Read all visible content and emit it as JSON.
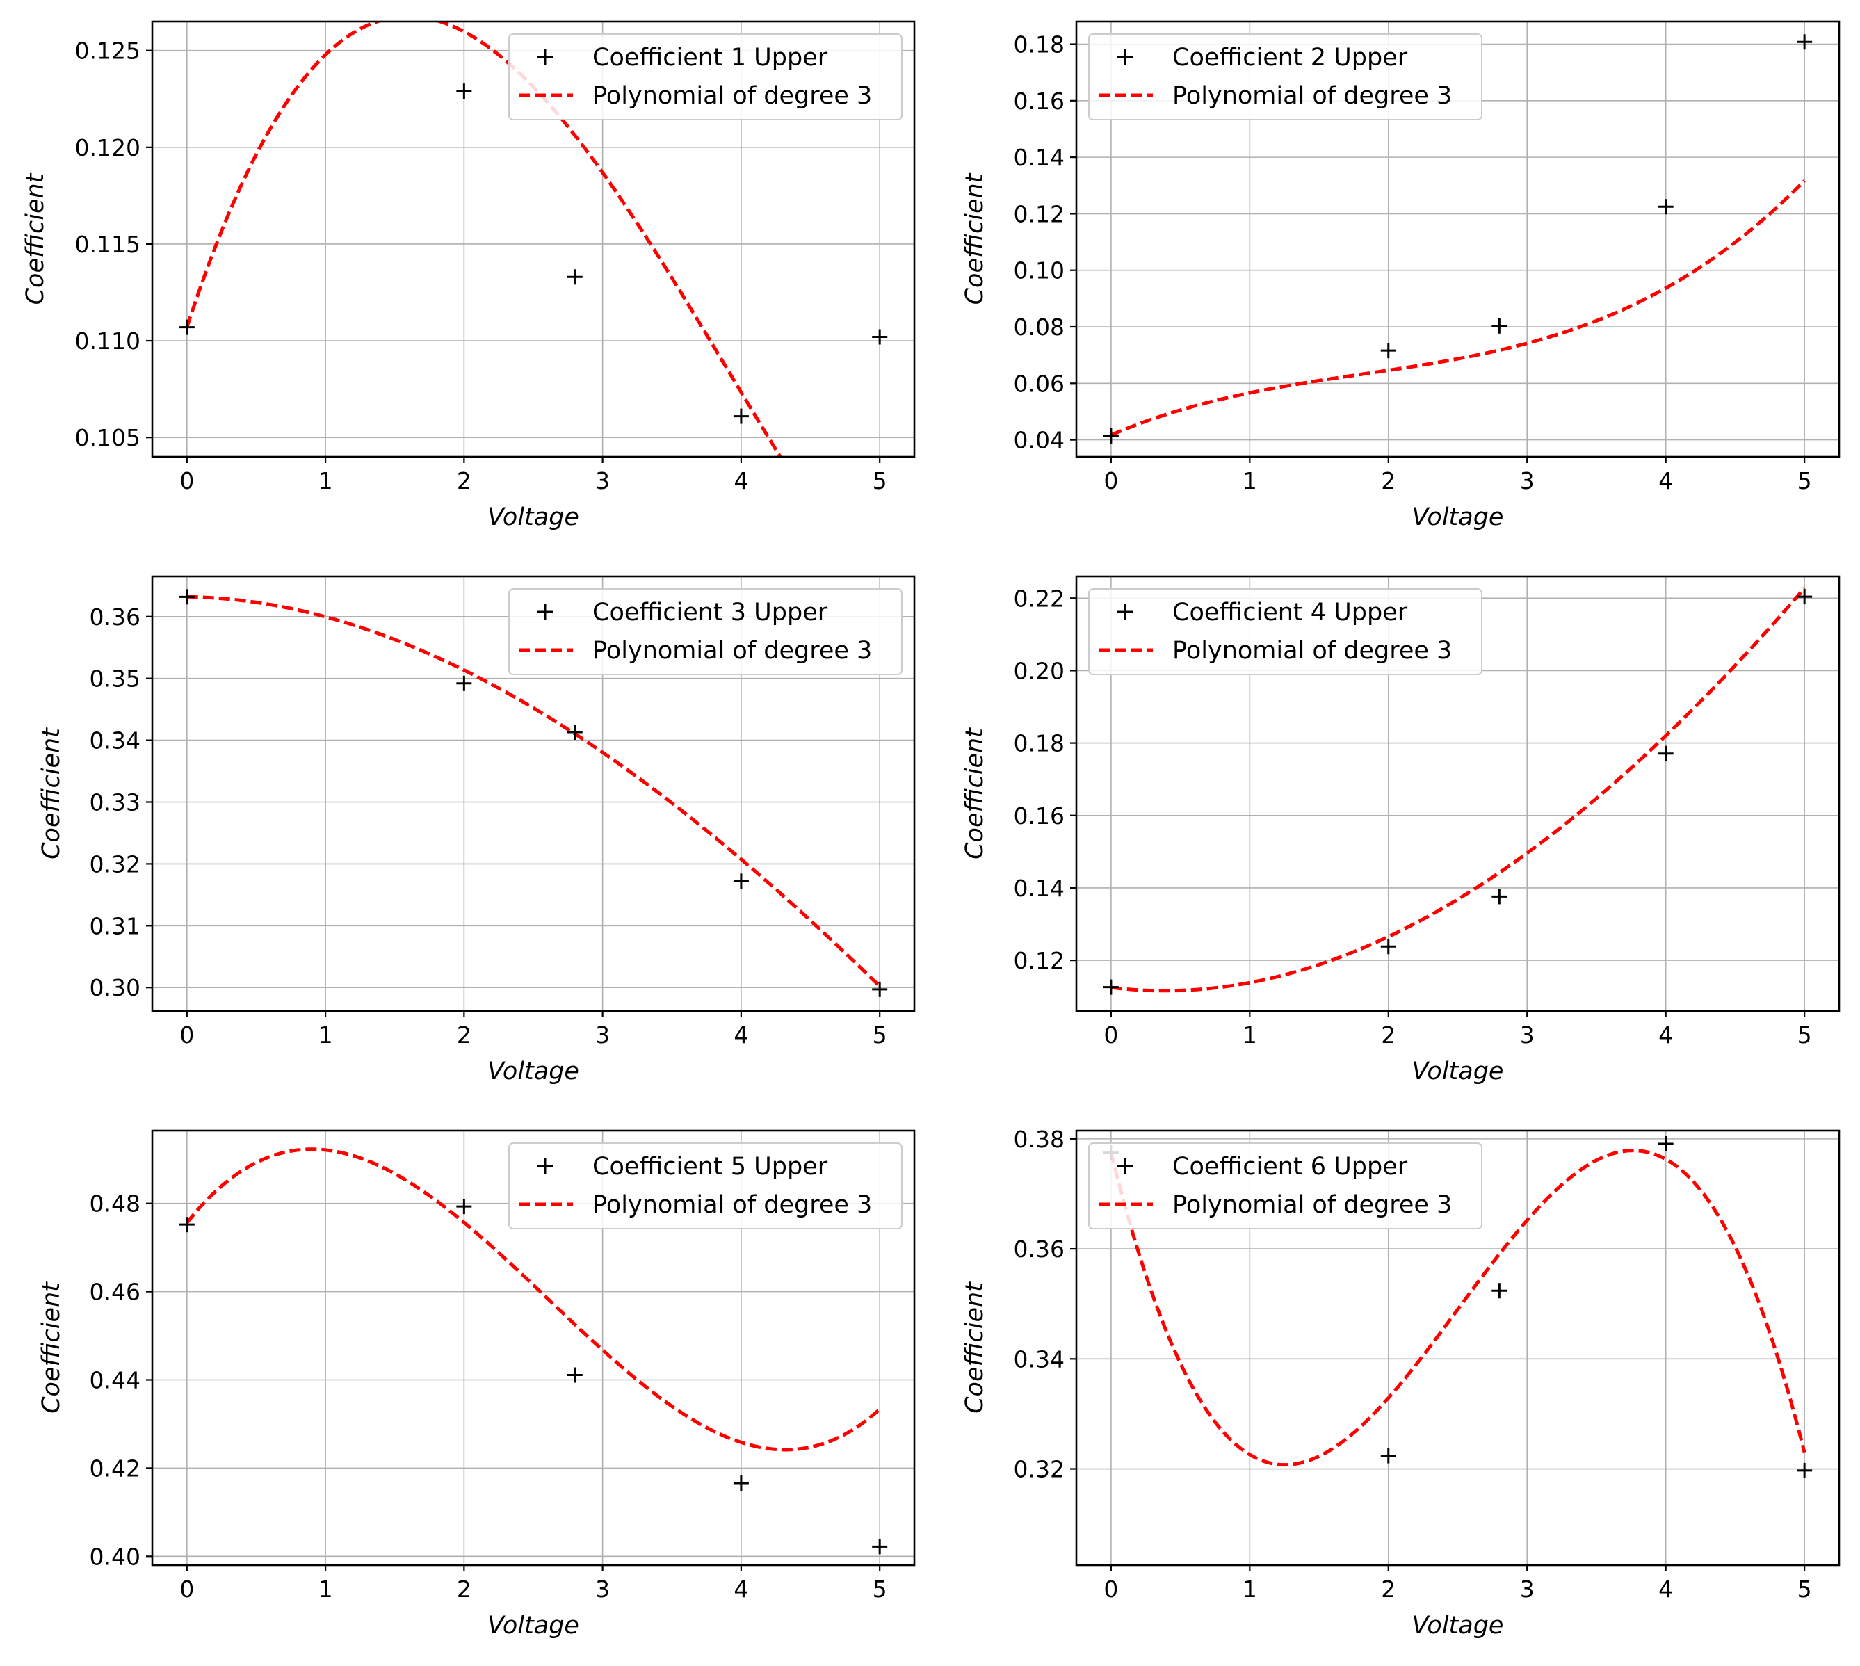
{
  "chart_data": [
    {
      "type": "line",
      "xlabel": "Voltage",
      "ylabel": "Coefficient",
      "xlim": [
        -0.25,
        5.25
      ],
      "ylim": [
        0.104,
        0.1265
      ],
      "xticks": [
        0,
        1,
        2,
        3,
        4,
        5
      ],
      "yticks": [
        0.105,
        0.11,
        0.115,
        0.12,
        0.125
      ],
      "ytick_labels": [
        "0.105",
        "0.110",
        "0.115",
        "0.120",
        "0.125"
      ],
      "grid": true,
      "legend_position": "top-right",
      "series": [
        {
          "name": "Coefficient 1 Upper",
          "kind": "points",
          "x": [
            0,
            2,
            2.8,
            4,
            5
          ],
          "y": [
            0.1107,
            0.1229,
            0.1133,
            0.1061,
            0.1102
          ]
        },
        {
          "name": "Polynomial of degree 3",
          "kind": "fit",
          "coeffs": [
            0.1107,
            0.022,
            -0.00865,
            0.000735
          ]
        }
      ]
    },
    {
      "type": "line",
      "xlabel": "Voltage",
      "ylabel": "Coefficient",
      "xlim": [
        -0.25,
        5.25
      ],
      "ylim": [
        0.034,
        0.188
      ],
      "xticks": [
        0,
        1,
        2,
        3,
        4,
        5
      ],
      "yticks": [
        0.04,
        0.06,
        0.08,
        0.1,
        0.12,
        0.14,
        0.16,
        0.18
      ],
      "ytick_labels": [
        "0.04",
        "0.06",
        "0.08",
        "0.10",
        "0.12",
        "0.14",
        "0.16",
        "0.18"
      ],
      "grid": true,
      "legend_position": "top-left",
      "series": [
        {
          "name": "Coefficient 2 Upper",
          "kind": "points",
          "x": [
            0,
            2,
            2.8,
            4,
            5
          ],
          "y": [
            0.0414,
            0.0716,
            0.0803,
            0.1225,
            0.1808
          ]
        },
        {
          "name": "Polynomial of degree 3",
          "kind": "fit",
          "coeffs": [
            0.0417,
            0.0212,
            -0.00769,
            0.00141
          ]
        }
      ]
    },
    {
      "type": "line",
      "xlabel": "Voltage",
      "ylabel": "Coefficient",
      "xlim": [
        -0.25,
        5.25
      ],
      "ylim": [
        0.2962,
        0.3665
      ],
      "xticks": [
        0,
        1,
        2,
        3,
        4,
        5
      ],
      "yticks": [
        0.3,
        0.31,
        0.32,
        0.33,
        0.34,
        0.35,
        0.36
      ],
      "ytick_labels": [
        "0.30",
        "0.31",
        "0.32",
        "0.33",
        "0.34",
        "0.35",
        "0.36"
      ],
      "grid": true,
      "legend_position": "top-right",
      "series": [
        {
          "name": "Coefficient 3 Upper",
          "kind": "points",
          "x": [
            0,
            2,
            2.8,
            4,
            5
          ],
          "y": [
            0.3632,
            0.3492,
            0.3413,
            0.3172,
            0.2997
          ]
        },
        {
          "name": "Polynomial of degree 3",
          "kind": "fit",
          "coeffs": [
            0.3632,
            -0.0003,
            -0.00305,
            0.000118
          ]
        }
      ]
    },
    {
      "type": "line",
      "xlabel": "Voltage",
      "ylabel": "Coefficient",
      "xlim": [
        -0.25,
        5.25
      ],
      "ylim": [
        0.106,
        0.226
      ],
      "xticks": [
        0,
        1,
        2,
        3,
        4,
        5
      ],
      "yticks": [
        0.12,
        0.14,
        0.16,
        0.18,
        0.2,
        0.22
      ],
      "ytick_labels": [
        "0.12",
        "0.14",
        "0.16",
        "0.18",
        "0.20",
        "0.22"
      ],
      "grid": true,
      "legend_position": "top-left",
      "series": [
        {
          "name": "Coefficient 4 Upper",
          "kind": "points",
          "x": [
            0,
            2,
            2.8,
            4,
            5
          ],
          "y": [
            0.1126,
            0.1238,
            0.1376,
            0.1771,
            0.2204
          ]
        },
        {
          "name": "Polynomial of degree 3",
          "kind": "fit",
          "coeffs": [
            0.1125,
            -0.0047,
            0.0062,
            -0.00017
          ]
        }
      ]
    },
    {
      "type": "line",
      "xlabel": "Voltage",
      "ylabel": "Coefficient",
      "xlim": [
        -0.25,
        5.25
      ],
      "ylim": [
        0.398,
        0.4965
      ],
      "xticks": [
        0,
        1,
        2,
        3,
        4,
        5
      ],
      "yticks": [
        0.4,
        0.42,
        0.44,
        0.46,
        0.48
      ],
      "ytick_labels": [
        "0.40",
        "0.42",
        "0.44",
        "0.46",
        "0.48"
      ],
      "grid": true,
      "legend_position": "top-right",
      "series": [
        {
          "name": "Coefficient 5 Upper",
          "kind": "points",
          "x": [
            0,
            2,
            2.8,
            4,
            5
          ],
          "y": [
            0.4752,
            0.4793,
            0.4411,
            0.4166,
            0.4022
          ]
        },
        {
          "name": "Polynomial of degree 3",
          "kind": "fit",
          "coeffs": [
            0.4756,
            0.0398,
            -0.0267,
            0.00341
          ]
        }
      ]
    },
    {
      "type": "line",
      "xlabel": "Voltage",
      "ylabel": "Coefficient",
      "xlim": [
        -0.25,
        5.25
      ],
      "ylim": [
        0.3025,
        0.3815
      ],
      "xticks": [
        0,
        1,
        2,
        3,
        4,
        5
      ],
      "yticks": [
        0.32,
        0.34,
        0.36,
        0.38
      ],
      "ytick_labels": [
        "0.32",
        "0.34",
        "0.36",
        "0.38"
      ],
      "grid": true,
      "legend_position": "top-left",
      "series": [
        {
          "name": "Coefficient 6 Upper",
          "kind": "points",
          "x": [
            0,
            2,
            2.8,
            4,
            5
          ],
          "y": [
            0.3775,
            0.3224,
            0.3524,
            0.3791,
            0.3197
          ]
        },
        {
          "name": "Polynomial of degree 3",
          "kind": "fit",
          "coeffs": [
            0.3775,
            -0.1019,
            0.0542,
            -0.0072
          ]
        }
      ]
    }
  ]
}
